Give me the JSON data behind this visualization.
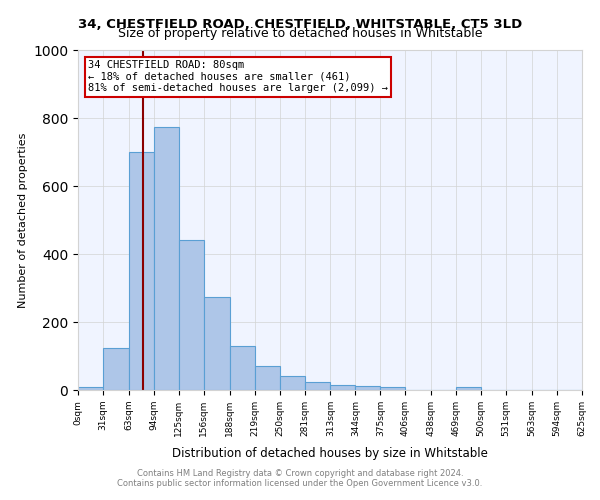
{
  "title1": "34, CHESTFIELD ROAD, CHESTFIELD, WHITSTABLE, CT5 3LD",
  "title2": "Size of property relative to detached houses in Whitstable",
  "xlabel": "Distribution of detached houses by size in Whitstable",
  "ylabel": "Number of detached properties",
  "bin_edges": [
    0,
    31,
    63,
    94,
    125,
    156,
    188,
    219,
    250,
    281,
    313,
    344,
    375,
    406,
    438,
    469,
    500,
    531,
    563,
    594,
    625
  ],
  "bar_heights": [
    10,
    125,
    700,
    775,
    440,
    275,
    130,
    70,
    40,
    25,
    15,
    12,
    10,
    0,
    0,
    10,
    0,
    0,
    0,
    0
  ],
  "bar_color": "#aec6e8",
  "bar_edge_color": "#5a9fd4",
  "property_size": 80,
  "vline_color": "#8b0000",
  "annotation_text": "34 CHESTFIELD ROAD: 80sqm\n← 18% of detached houses are smaller (461)\n81% of semi-detached houses are larger (2,099) →",
  "annotation_box_color": "#ffffff",
  "annotation_border_color": "#cc0000",
  "footer1": "Contains HM Land Registry data © Crown copyright and database right 2024.",
  "footer2": "Contains public sector information licensed under the Open Government Licence v3.0.",
  "bg_color": "#f0f4ff",
  "ylim": [
    0,
    1000
  ],
  "tick_labels": [
    "0sqm",
    "31sqm",
    "63sqm",
    "94sqm",
    "125sqm",
    "156sqm",
    "188sqm",
    "219sqm",
    "250sqm",
    "281sqm",
    "313sqm",
    "344sqm",
    "375sqm",
    "406sqm",
    "438sqm",
    "469sqm",
    "500sqm",
    "531sqm",
    "563sqm",
    "594sqm",
    "625sqm"
  ]
}
